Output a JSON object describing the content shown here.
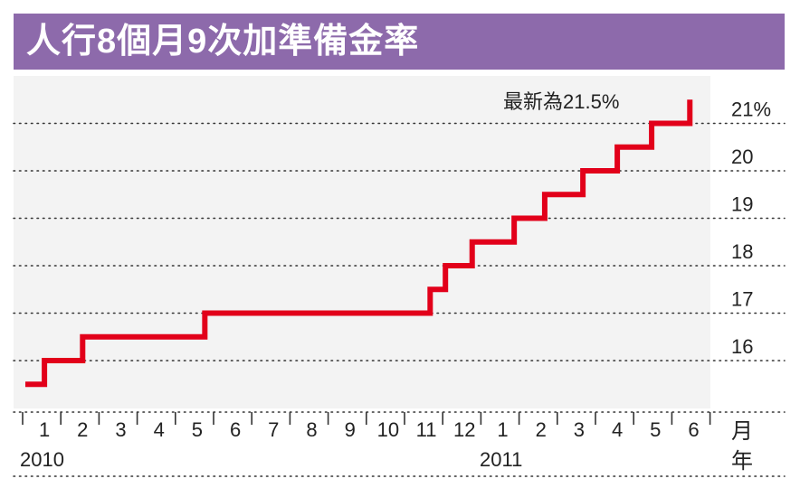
{
  "title": "人行8個月9次加準備金率",
  "annotation": "最新為21.5%",
  "colors": {
    "title_bg": "#8d6aab",
    "line": "#e2001a",
    "plot_bg": "#f3f3f3",
    "grid": "#333333"
  },
  "chart_data": {
    "type": "line",
    "step": true,
    "title": "人行8個月9次加準備金率",
    "ylim": [
      15.5,
      21.5
    ],
    "y_ticks": [
      {
        "value": 16,
        "label": "16"
      },
      {
        "value": 17,
        "label": "17"
      },
      {
        "value": 18,
        "label": "18"
      },
      {
        "value": 19,
        "label": "19"
      },
      {
        "value": 20,
        "label": "20"
      },
      {
        "value": 21,
        "label": "21%"
      }
    ],
    "x_month_labels": [
      "1",
      "2",
      "3",
      "4",
      "5",
      "6",
      "7",
      "8",
      "9",
      "10",
      "11",
      "12",
      "1",
      "2",
      "3",
      "4",
      "5",
      "6"
    ],
    "x_unit_month": "月",
    "x_unit_year": "年",
    "x_year_labels": [
      "2010",
      "2011"
    ],
    "series": [
      {
        "values": [
          {
            "month": 0.0,
            "value": 15.5
          },
          {
            "month": 0.5,
            "value": 16.0
          },
          {
            "month": 1.5,
            "value": 16.5
          },
          {
            "month": 4.7,
            "value": 17.0
          },
          {
            "month": 10.6,
            "value": 17.5
          },
          {
            "month": 11.0,
            "value": 18.0
          },
          {
            "month": 11.7,
            "value": 18.5
          },
          {
            "month": 12.8,
            "value": 19.0
          },
          {
            "month": 13.6,
            "value": 19.5
          },
          {
            "month": 14.6,
            "value": 20.0
          },
          {
            "month": 15.5,
            "value": 20.5
          },
          {
            "month": 16.4,
            "value": 21.0
          },
          {
            "month": 17.4,
            "value": 21.5
          }
        ]
      }
    ],
    "grid": true,
    "annotation": "最新為21.5%"
  }
}
